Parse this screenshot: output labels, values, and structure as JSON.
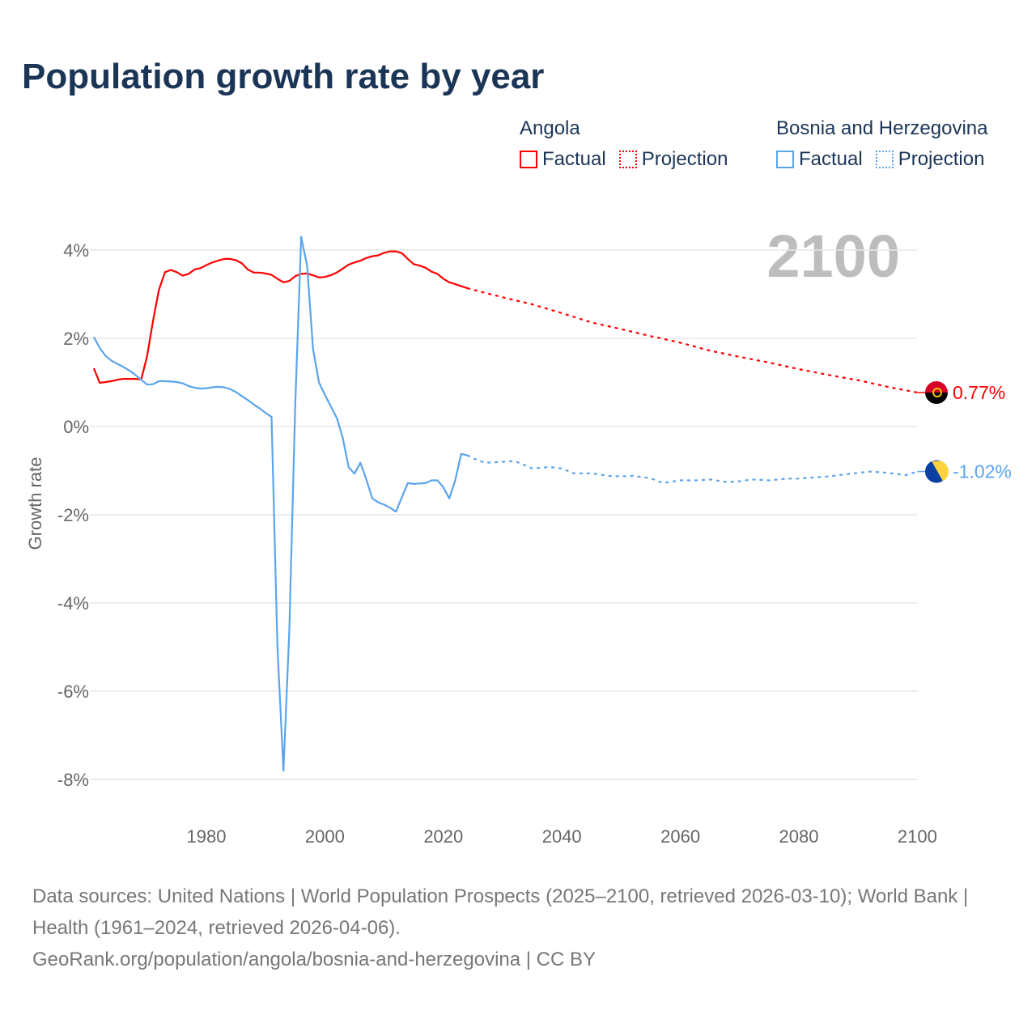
{
  "title": "Population growth rate by year",
  "legend": {
    "groups": [
      {
        "country": "Angola",
        "factual": "Factual",
        "projection": "Projection",
        "color": "#ff0000"
      },
      {
        "country": "Bosnia and Herzegovina",
        "factual": "Factual",
        "projection": "Projection",
        "color": "#5ba4ec"
      }
    ]
  },
  "year_label": "2100",
  "source_line1": "Data sources: United Nations | World Population Prospects (2025–2100, retrieved 2026-03-10); World Bank | Health (1961–2024, retrieved 2026-04-06).",
  "source_line2": "GeoRank.org/population/angola/bosnia-and-herzegovina | CC BY",
  "chart_data": {
    "type": "line",
    "title": "Population growth rate by year",
    "xlabel": "",
    "ylabel": "Growth rate",
    "xlim": [
      1961,
      2100
    ],
    "ylim": [
      -8.9,
      4.9
    ],
    "xticks": [
      1980,
      2000,
      2020,
      2040,
      2060,
      2080,
      2100
    ],
    "yticks": [
      4,
      2,
      0,
      -2,
      -4,
      -6,
      -8
    ],
    "ytick_labels": [
      "4%",
      "2%",
      "0%",
      "-2%",
      "-4%",
      "-6%",
      "-8%"
    ],
    "grid": true,
    "series": [
      {
        "name": "Angola",
        "color": "#ff0000",
        "end_label": "0.77%",
        "factual_start": 1961,
        "factual": [
          1.32,
          0.99,
          1.01,
          1.03,
          1.06,
          1.08,
          1.08,
          1.08,
          1.07,
          1.6,
          2.4,
          3.1,
          3.5,
          3.55,
          3.5,
          3.42,
          3.46,
          3.56,
          3.59,
          3.66,
          3.72,
          3.76,
          3.8,
          3.8,
          3.77,
          3.7,
          3.56,
          3.49,
          3.49,
          3.47,
          3.44,
          3.35,
          3.27,
          3.3,
          3.41,
          3.46,
          3.47,
          3.43,
          3.38,
          3.39,
          3.43,
          3.49,
          3.58,
          3.67,
          3.72,
          3.76,
          3.82,
          3.86,
          3.88,
          3.94,
          3.97,
          3.97,
          3.93,
          3.8,
          3.68,
          3.65,
          3.6,
          3.51,
          3.46,
          3.35,
          3.27,
          3.23,
          3.18,
          3.14
        ],
        "projection": [
          [
            2024,
            3.14
          ],
          [
            2025,
            3.1
          ],
          [
            2030,
            2.93
          ],
          [
            2035,
            2.77
          ],
          [
            2040,
            2.57
          ],
          [
            2045,
            2.36
          ],
          [
            2050,
            2.21
          ],
          [
            2055,
            2.05
          ],
          [
            2060,
            1.9
          ],
          [
            2065,
            1.72
          ],
          [
            2070,
            1.58
          ],
          [
            2075,
            1.45
          ],
          [
            2080,
            1.3
          ],
          [
            2085,
            1.17
          ],
          [
            2090,
            1.05
          ],
          [
            2095,
            0.9
          ],
          [
            2100,
            0.77
          ]
        ]
      },
      {
        "name": "Bosnia and Herzegovina",
        "color": "#5ba4ec",
        "end_label": "-1.02%",
        "factual_start": 1961,
        "factual": [
          2.03,
          1.78,
          1.6,
          1.49,
          1.42,
          1.35,
          1.27,
          1.17,
          1.06,
          0.95,
          0.96,
          1.03,
          1.03,
          1.02,
          1.01,
          0.98,
          0.92,
          0.88,
          0.86,
          0.87,
          0.89,
          0.9,
          0.89,
          0.85,
          0.78,
          0.69,
          0.6,
          0.5,
          0.41,
          0.31,
          0.22,
          -5.0,
          -7.8,
          -4.6,
          0.5,
          4.3,
          3.65,
          1.75,
          1.0,
          0.72,
          0.46,
          0.2,
          -0.25,
          -0.92,
          -1.07,
          -0.82,
          -1.2,
          -1.63,
          -1.72,
          -1.77,
          -1.84,
          -1.93,
          -1.6,
          -1.28,
          -1.3,
          -1.29,
          -1.28,
          -1.22,
          -1.22,
          -1.38,
          -1.63,
          -1.22,
          -0.62,
          -0.65
        ],
        "projection": [
          [
            2024,
            -0.65
          ],
          [
            2025,
            -0.72
          ],
          [
            2027,
            -0.82
          ],
          [
            2030,
            -0.8
          ],
          [
            2032,
            -0.78
          ],
          [
            2035,
            -0.95
          ],
          [
            2038,
            -0.92
          ],
          [
            2040,
            -0.95
          ],
          [
            2042,
            -1.06
          ],
          [
            2045,
            -1.06
          ],
          [
            2048,
            -1.12
          ],
          [
            2050,
            -1.13
          ],
          [
            2052,
            -1.12
          ],
          [
            2055,
            -1.17
          ],
          [
            2057,
            -1.28
          ],
          [
            2060,
            -1.22
          ],
          [
            2063,
            -1.22
          ],
          [
            2065,
            -1.2
          ],
          [
            2068,
            -1.26
          ],
          [
            2070,
            -1.24
          ],
          [
            2072,
            -1.2
          ],
          [
            2075,
            -1.22
          ],
          [
            2078,
            -1.18
          ],
          [
            2080,
            -1.18
          ],
          [
            2085,
            -1.13
          ],
          [
            2088,
            -1.08
          ],
          [
            2090,
            -1.05
          ],
          [
            2092,
            -1.02
          ],
          [
            2095,
            -1.05
          ],
          [
            2098,
            -1.1
          ],
          [
            2100,
            -1.02
          ]
        ]
      }
    ]
  }
}
